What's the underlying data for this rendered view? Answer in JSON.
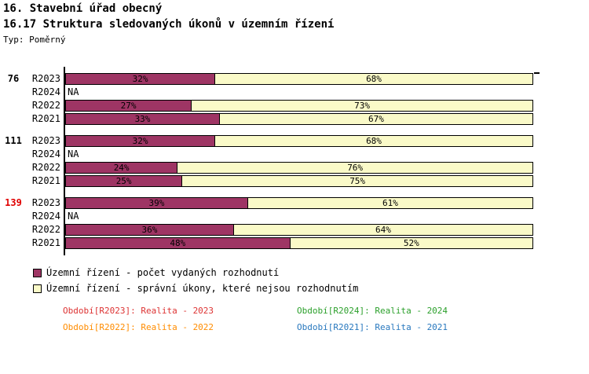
{
  "header": {
    "title": "16. Stavební úřad obecný",
    "subtitle": "16.17 Struktura sledovaných úkonů v územním řízení",
    "type_label": "Typ: Poměrný"
  },
  "chart_data": {
    "type": "bar",
    "stacked": true,
    "orientation": "horizontal",
    "unit": "%",
    "xlim": [
      0,
      100
    ],
    "grid": false,
    "na_label": "NA",
    "series": [
      {
        "name": "Územní řízení - počet vydaných rozhodnutí",
        "color": "#9E3564"
      },
      {
        "name": "Územní řízení - správní úkony, které nejsou rozhodnutím",
        "color": "#FAFAC8"
      }
    ],
    "groups": [
      {
        "label": "76",
        "label_color": "#000000",
        "rows": [
          {
            "period": "R2023",
            "values": [
              32,
              68
            ]
          },
          {
            "period": "R2024",
            "values": null
          },
          {
            "period": "R2022",
            "values": [
              27,
              73
            ]
          },
          {
            "period": "R2021",
            "values": [
              33,
              67
            ]
          }
        ]
      },
      {
        "label": "111",
        "label_color": "#000000",
        "rows": [
          {
            "period": "R2023",
            "values": [
              32,
              68
            ]
          },
          {
            "period": "R2024",
            "values": null
          },
          {
            "period": "R2022",
            "values": [
              24,
              76
            ]
          },
          {
            "period": "R2021",
            "values": [
              25,
              75
            ]
          }
        ]
      },
      {
        "label": "139",
        "label_color": "#E00000",
        "rows": [
          {
            "period": "R2023",
            "values": [
              39,
              61
            ]
          },
          {
            "period": "R2024",
            "values": null
          },
          {
            "period": "R2022",
            "values": [
              36,
              64
            ]
          },
          {
            "period": "R2021",
            "values": [
              48,
              52
            ]
          }
        ]
      }
    ]
  },
  "legend": {
    "items": [
      {
        "label": "Územní řízení - počet vydaných rozhodnutí",
        "color": "#9E3564"
      },
      {
        "label": "Územní řízení - správní úkony, které nejsou rozhodnutím",
        "color": "#FAFAC8"
      }
    ]
  },
  "footer": {
    "periods": [
      {
        "label": "Období[R2023]: Realita - 2023",
        "color": "#DD3333"
      },
      {
        "label": "Období[R2024]: Realita - 2024",
        "color": "#2CA02C"
      },
      {
        "label": "Období[R2022]: Realita - 2022",
        "color": "#FF8C00"
      },
      {
        "label": "Období[R2021]: Realita - 2021",
        "color": "#2878BE"
      }
    ]
  }
}
